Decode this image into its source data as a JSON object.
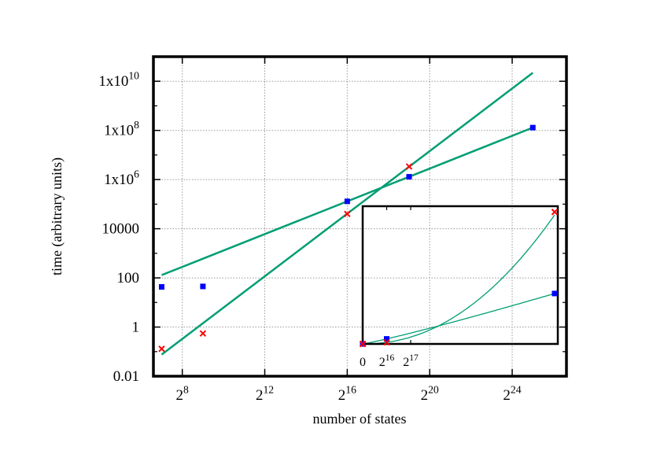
{
  "chart_data": [
    {
      "type": "scatter",
      "panel": "main",
      "xlabel": "number of states",
      "ylabel": "time (arbitrary units)",
      "x_scale": "log2",
      "y_scale": "log10",
      "xlim": [
        97,
        104000000
      ],
      "ylim": [
        0.01,
        100000000000
      ],
      "grid": true,
      "x_ticks": [
        {
          "value": 256,
          "base": "2",
          "exp": "8"
        },
        {
          "value": 4096,
          "base": "2",
          "exp": "12"
        },
        {
          "value": 65536,
          "base": "2",
          "exp": "16"
        },
        {
          "value": 1048576,
          "base": "2",
          "exp": "20"
        },
        {
          "value": 16777216,
          "base": "2",
          "exp": "24"
        }
      ],
      "y_ticks": [
        {
          "value": 0.01,
          "label": "0.01",
          "exp": ""
        },
        {
          "value": 1,
          "label": "1",
          "exp": ""
        },
        {
          "value": 100,
          "label": "100",
          "exp": ""
        },
        {
          "value": 10000,
          "label": "10000",
          "exp": ""
        },
        {
          "value": 1000000,
          "label": "1x10",
          "exp": "6"
        },
        {
          "value": 100000000,
          "label": "1x10",
          "exp": "8"
        },
        {
          "value": 10000000000,
          "label": "1x10",
          "exp": "10"
        }
      ],
      "series": [
        {
          "marker": "square",
          "color": "#0000ff",
          "x": [
            128,
            512,
            65536,
            524288,
            33554432
          ],
          "y": [
            43,
            45,
            130000,
            1300000,
            130000000
          ]
        },
        {
          "marker": "cross",
          "color": "#ff0000",
          "x": [
            128,
            512,
            65536,
            524288
          ],
          "y": [
            0.13,
            0.55,
            40000,
            3400000
          ]
        }
      ],
      "fits": [
        {
          "color": "#009e73",
          "x": [
            128,
            33554432
          ],
          "y": [
            130,
            130000000
          ]
        },
        {
          "color": "#009e73",
          "x": [
            128,
            33554432
          ],
          "y": [
            0.076,
            22000000000
          ]
        }
      ]
    },
    {
      "type": "scatter",
      "panel": "inset",
      "x_scale": "linear",
      "y_scale": "linear",
      "xlim": [
        0,
        533000
      ],
      "ylim": [
        0,
        3550000
      ],
      "x_ticks": [
        {
          "value": 0,
          "base": "0",
          "exp": ""
        },
        {
          "value": 65536,
          "base": "2",
          "exp": "16"
        },
        {
          "value": 131072,
          "base": "2",
          "exp": "17"
        }
      ],
      "series": [
        {
          "marker": "square",
          "color": "#0000ff",
          "x": [
            128,
            512,
            65536,
            524288
          ],
          "y": [
            43,
            45,
            130000,
            1300000
          ]
        },
        {
          "marker": "cross",
          "color": "#ff0000",
          "x": [
            128,
            512,
            65536,
            524288
          ],
          "y": [
            0.13,
            0.55,
            40000,
            3400000
          ]
        }
      ]
    }
  ]
}
